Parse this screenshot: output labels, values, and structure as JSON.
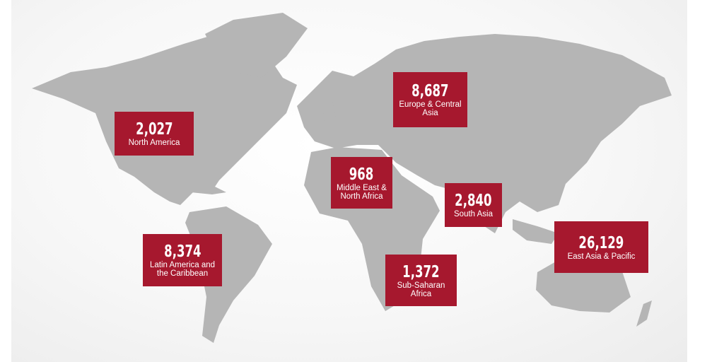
{
  "colors": {
    "box": "#a6182e",
    "land": "#b5b5b5",
    "text": "#ffffff"
  },
  "regions": [
    {
      "id": "north-america",
      "value": "2,027",
      "label": "North America"
    },
    {
      "id": "europe-central-asia",
      "value": "8,687",
      "label": "Europe & Central Asia"
    },
    {
      "id": "middle-east-north-africa",
      "value": "968",
      "label": "Middle East & North Africa"
    },
    {
      "id": "south-asia",
      "value": "2,840",
      "label": "South Asia"
    },
    {
      "id": "east-asia-pacific",
      "value": "26,129",
      "label": "East Asia & Pacific"
    },
    {
      "id": "latin-america-caribbean",
      "value": "8,374",
      "label": "Latin America and the Caribbean"
    },
    {
      "id": "sub-saharan-africa",
      "value": "1,372",
      "label": "Sub-Saharan Africa"
    }
  ]
}
